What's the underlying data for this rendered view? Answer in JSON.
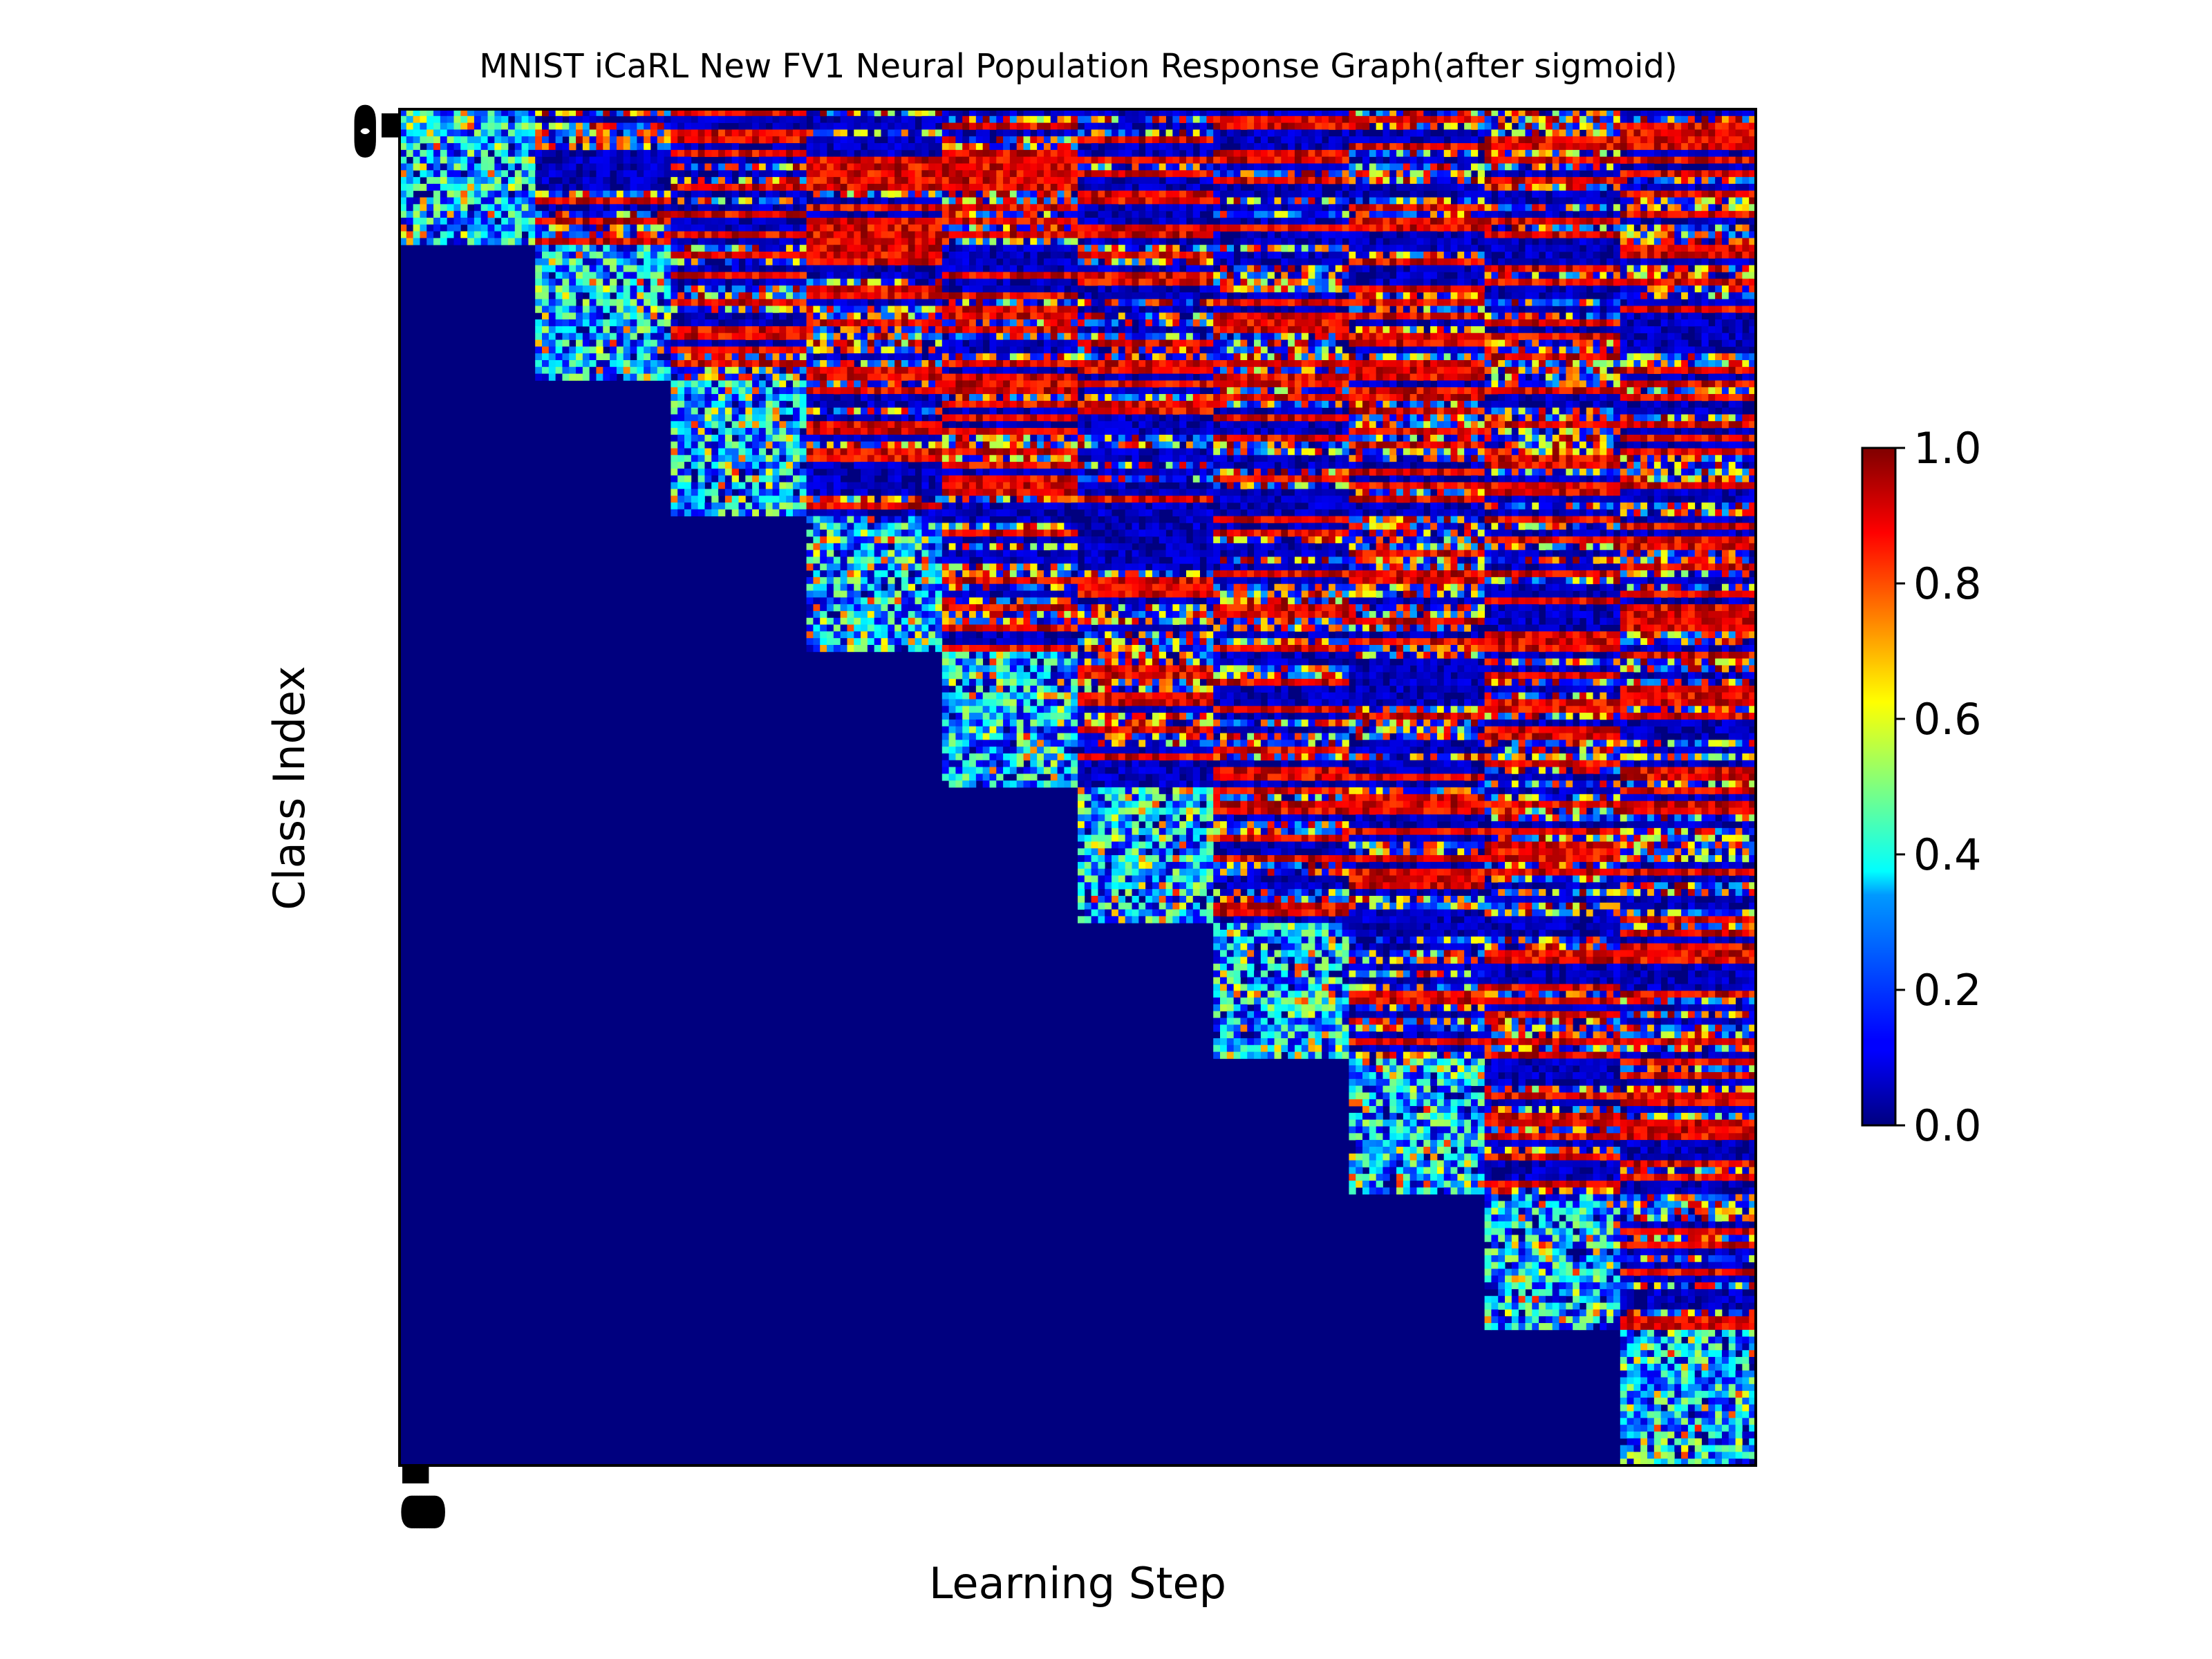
{
  "chart_data": {
    "type": "heatmap",
    "title": "MNIST iCaRL New FV1 Neural Population Response Graph(after sigmoid)",
    "xlabel": "Learning Step",
    "ylabel": "Class Index",
    "colormap": "jet",
    "grid": false,
    "blocks": 10,
    "cells_per_block": 20,
    "value_range": [
      0.0,
      1.0
    ],
    "structure": "Each learning step (column block) shows responses for classes learned so far; blocks below the diagonal are 0.0 (not yet learned). Diagonal blocks show mixed responses (~0.2-0.6); off-diagonal upper blocks show strong banded responses (many rows near 1.0).",
    "x_tick_labels": [
      "0",
      "0",
      "0",
      "0",
      "0",
      "0",
      "0",
      "0",
      "0",
      "0"
    ],
    "y_tick_labels": [
      "0",
      "0",
      "0",
      "0",
      "0",
      "0",
      "0",
      "0",
      "0",
      "0"
    ],
    "colorbar": {
      "ticks": [
        "0.0",
        "0.2",
        "0.4",
        "0.6",
        "0.8",
        "1.0"
      ],
      "range": [
        0.0,
        1.0
      ]
    }
  }
}
